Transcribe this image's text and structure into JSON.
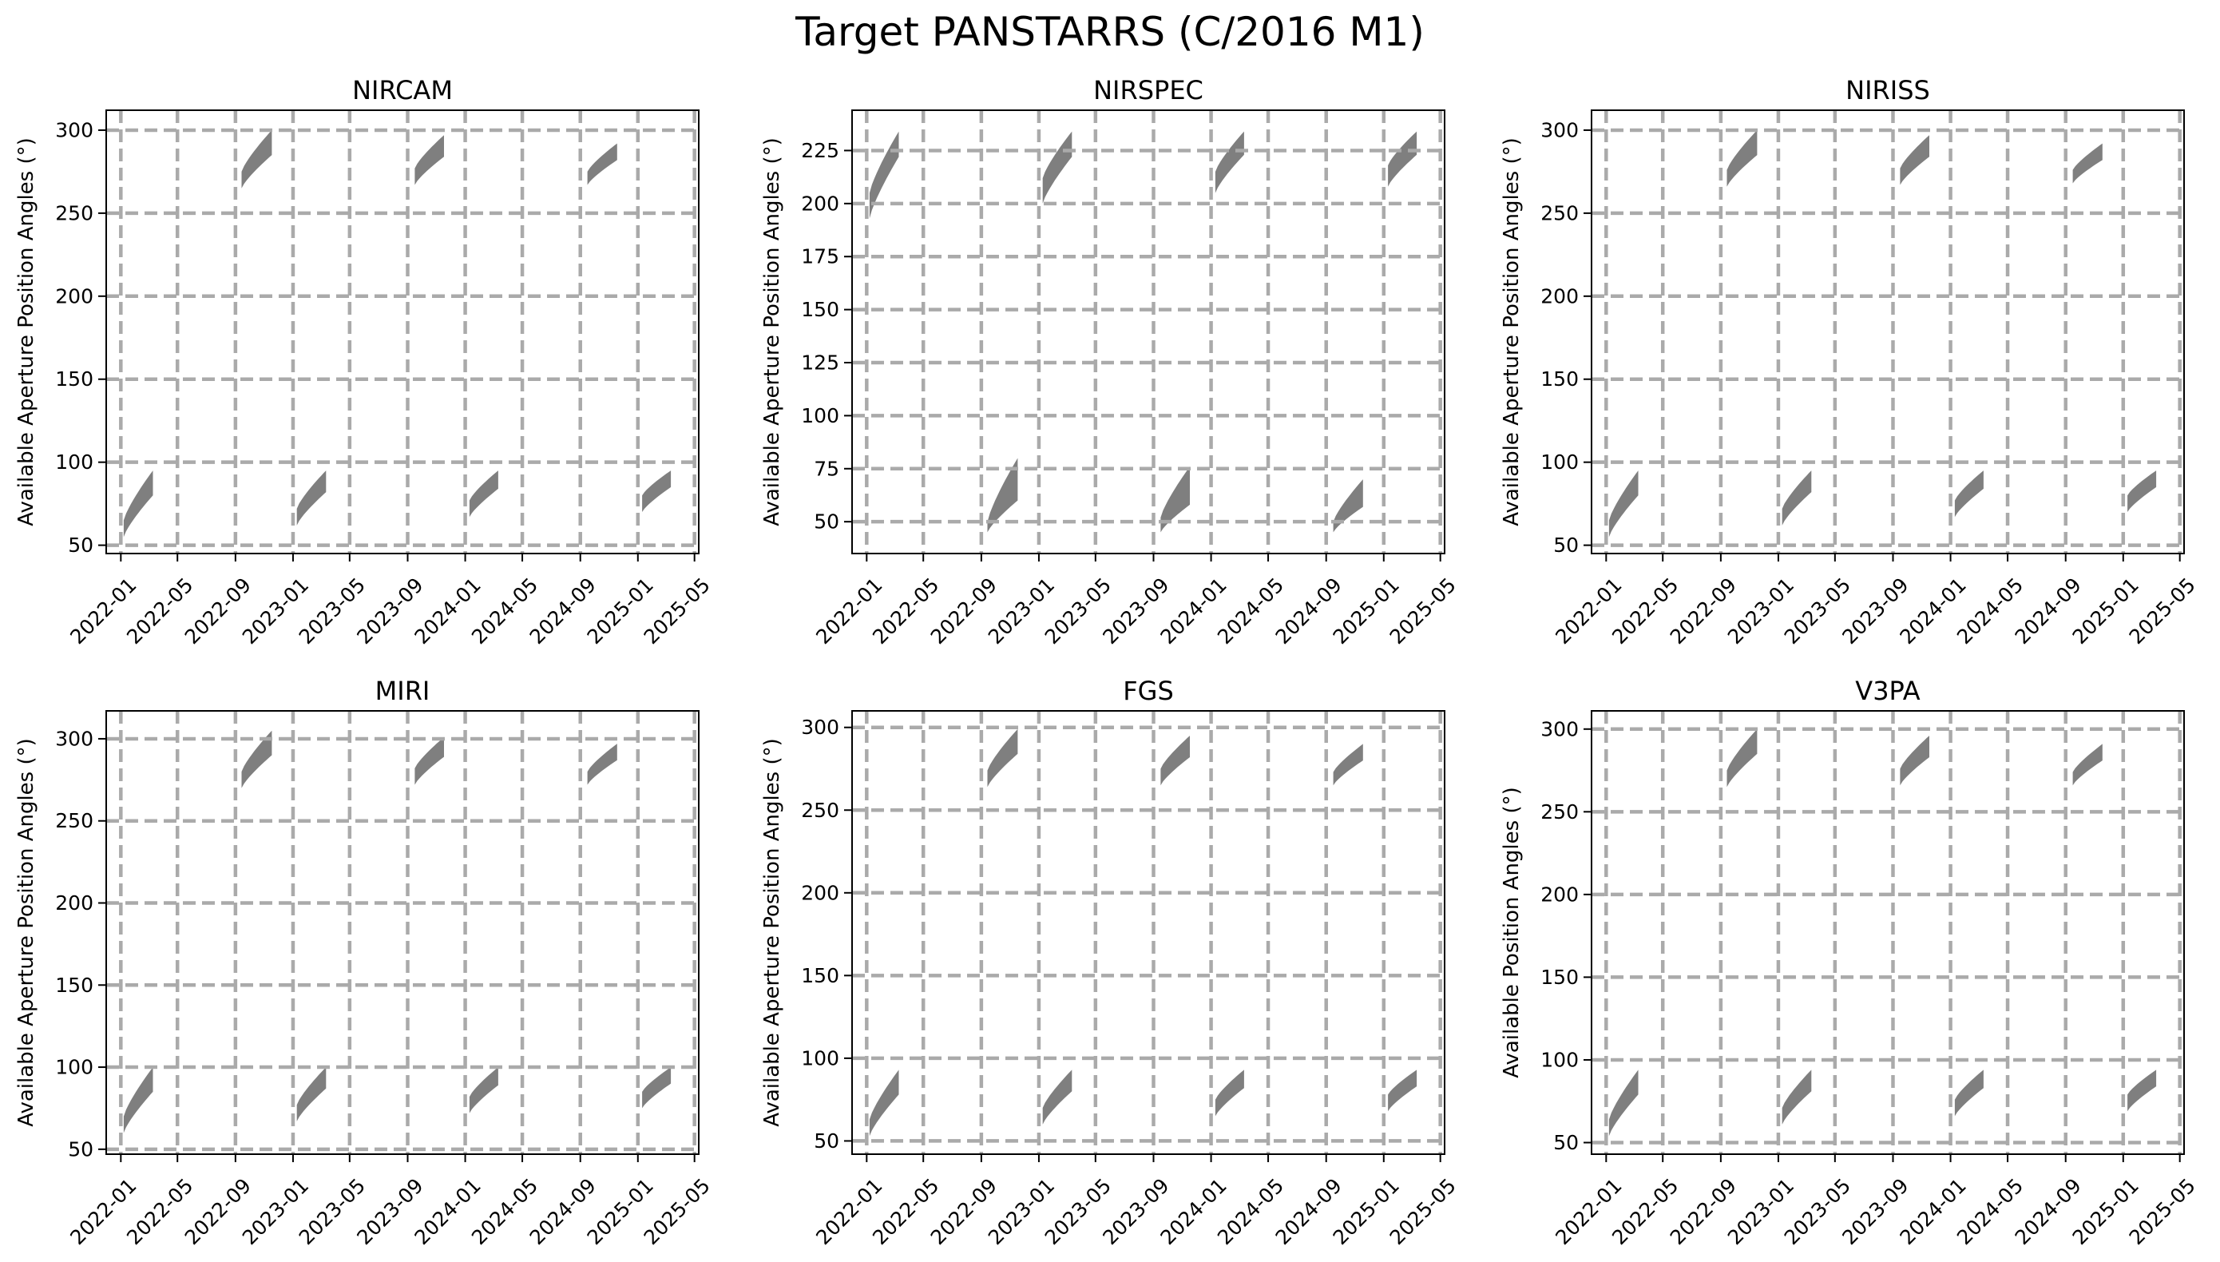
{
  "title": "Target PANSTARRS (C/2016 M1)",
  "colors": {
    "fill": "#7f7f7f",
    "grid": "#aaaaaa",
    "axis": "#000000"
  },
  "chart_data": [
    {
      "type": "area",
      "title": "NIRCAM",
      "ylabel": "Available Aperture Position Angles ($^\\circ$)",
      "ylabel_display": "Available Aperture Position Angles (°)",
      "xticks": [
        "2022-01",
        "2022-05",
        "2022-09",
        "2023-01",
        "2023-05",
        "2023-09",
        "2024-01",
        "2024-05",
        "2024-09",
        "2025-01",
        "2025-05"
      ],
      "yticks": [
        50,
        100,
        150,
        200,
        250,
        300
      ],
      "xlim": [
        "2021-12-01",
        "2025-05-10"
      ],
      "ylim": [
        45,
        312
      ],
      "grid": true,
      "windows": [
        {
          "start": "2022-01-07",
          "end": "2022-03-10",
          "lower": [
            55,
            80
          ],
          "upper": [
            65,
            95
          ]
        },
        {
          "start": "2022-09-14",
          "end": "2022-11-17",
          "lower": [
            265,
            285
          ],
          "upper": [
            275,
            300
          ]
        },
        {
          "start": "2023-01-09",
          "end": "2023-03-12",
          "lower": [
            62,
            82
          ],
          "upper": [
            72,
            95
          ]
        },
        {
          "start": "2023-09-16",
          "end": "2023-11-17",
          "lower": [
            267,
            284
          ],
          "upper": [
            277,
            297
          ]
        },
        {
          "start": "2024-01-10",
          "end": "2024-03-11",
          "lower": [
            67,
            84
          ],
          "upper": [
            77,
            95
          ]
        },
        {
          "start": "2024-09-16",
          "end": "2024-11-18",
          "lower": [
            267,
            282
          ],
          "upper": [
            275,
            292
          ]
        },
        {
          "start": "2025-01-10",
          "end": "2025-03-12",
          "lower": [
            70,
            85
          ],
          "upper": [
            80,
            95
          ]
        }
      ]
    },
    {
      "type": "area",
      "title": "NIRSPEC",
      "ylabel": "Available Aperture Position Angles ($^\\circ$)",
      "ylabel_display": "Available Aperture Position Angles (°)",
      "xticks": [
        "2022-01",
        "2022-05",
        "2022-09",
        "2023-01",
        "2023-05",
        "2023-09",
        "2024-01",
        "2024-05",
        "2024-09",
        "2025-01",
        "2025-05"
      ],
      "yticks": [
        50,
        75,
        100,
        125,
        150,
        175,
        200,
        225
      ],
      "xlim": [
        "2021-12-01",
        "2025-05-10"
      ],
      "ylim": [
        35,
        244
      ],
      "grid": true,
      "windows": [
        {
          "start": "2022-01-07",
          "end": "2022-03-10",
          "lower": [
            193,
            222
          ],
          "upper": [
            205,
            234
          ]
        },
        {
          "start": "2022-09-14",
          "end": "2022-11-17",
          "lower": [
            45,
            60
          ],
          "upper": [
            50,
            80
          ]
        },
        {
          "start": "2023-01-09",
          "end": "2023-03-12",
          "lower": [
            200,
            222
          ],
          "upper": [
            212,
            234
          ]
        },
        {
          "start": "2023-09-16",
          "end": "2023-11-17",
          "lower": [
            45,
            58
          ],
          "upper": [
            52,
            76
          ]
        },
        {
          "start": "2024-01-10",
          "end": "2024-03-11",
          "lower": [
            205,
            223
          ],
          "upper": [
            215,
            234
          ]
        },
        {
          "start": "2024-09-16",
          "end": "2024-11-18",
          "lower": [
            45,
            57
          ],
          "upper": [
            50,
            70
          ]
        },
        {
          "start": "2025-01-10",
          "end": "2025-03-12",
          "lower": [
            208,
            223
          ],
          "upper": [
            218,
            234
          ]
        }
      ]
    },
    {
      "type": "area",
      "title": "NIRISS",
      "ylabel": "Available Aperture Position Angles ($^\\circ$)",
      "ylabel_display": "Available Aperture Position Angles (°)",
      "xticks": [
        "2022-01",
        "2022-05",
        "2022-09",
        "2023-01",
        "2023-05",
        "2023-09",
        "2024-01",
        "2024-05",
        "2024-09",
        "2025-01",
        "2025-05"
      ],
      "yticks": [
        50,
        100,
        150,
        200,
        250,
        300
      ],
      "xlim": [
        "2021-12-01",
        "2025-05-10"
      ],
      "ylim": [
        45,
        312
      ],
      "grid": true,
      "windows": [
        {
          "start": "2022-01-07",
          "end": "2022-03-10",
          "lower": [
            55,
            80
          ],
          "upper": [
            65,
            95
          ]
        },
        {
          "start": "2022-09-14",
          "end": "2022-11-17",
          "lower": [
            266,
            285
          ],
          "upper": [
            276,
            300
          ]
        },
        {
          "start": "2023-01-09",
          "end": "2023-03-12",
          "lower": [
            62,
            82
          ],
          "upper": [
            72,
            95
          ]
        },
        {
          "start": "2023-09-16",
          "end": "2023-11-17",
          "lower": [
            267,
            284
          ],
          "upper": [
            277,
            297
          ]
        },
        {
          "start": "2024-01-10",
          "end": "2024-03-11",
          "lower": [
            67,
            84
          ],
          "upper": [
            77,
            95
          ]
        },
        {
          "start": "2024-09-16",
          "end": "2024-11-18",
          "lower": [
            268,
            282
          ],
          "upper": [
            276,
            292
          ]
        },
        {
          "start": "2025-01-10",
          "end": "2025-03-12",
          "lower": [
            70,
            85
          ],
          "upper": [
            80,
            95
          ]
        }
      ]
    },
    {
      "type": "area",
      "title": "MIRI",
      "ylabel": "Available Aperture Position Angles ($^\\circ$)",
      "ylabel_display": "Available Aperture Position Angles (°)",
      "xticks": [
        "2022-01",
        "2022-05",
        "2022-09",
        "2023-01",
        "2023-05",
        "2023-09",
        "2024-01",
        "2024-05",
        "2024-09",
        "2025-01",
        "2025-05"
      ],
      "yticks": [
        50,
        100,
        150,
        200,
        250,
        300
      ],
      "xlim": [
        "2021-12-01",
        "2025-05-10"
      ],
      "ylim": [
        47,
        317
      ],
      "grid": true,
      "windows": [
        {
          "start": "2022-01-07",
          "end": "2022-03-10",
          "lower": [
            60,
            85
          ],
          "upper": [
            70,
            100
          ]
        },
        {
          "start": "2022-09-14",
          "end": "2022-11-17",
          "lower": [
            270,
            290
          ],
          "upper": [
            280,
            305
          ]
        },
        {
          "start": "2023-01-09",
          "end": "2023-03-12",
          "lower": [
            67,
            87
          ],
          "upper": [
            77,
            100
          ]
        },
        {
          "start": "2023-09-16",
          "end": "2023-11-17",
          "lower": [
            272,
            289
          ],
          "upper": [
            282,
            301
          ]
        },
        {
          "start": "2024-01-10",
          "end": "2024-03-11",
          "lower": [
            72,
            89
          ],
          "upper": [
            82,
            100
          ]
        },
        {
          "start": "2024-09-16",
          "end": "2024-11-18",
          "lower": [
            272,
            287
          ],
          "upper": [
            280,
            297
          ]
        },
        {
          "start": "2025-01-10",
          "end": "2025-03-12",
          "lower": [
            75,
            90
          ],
          "upper": [
            85,
            100
          ]
        }
      ]
    },
    {
      "type": "area",
      "title": "FGS",
      "ylabel": "Available Aperture Position Angles ($^\\circ$)",
      "ylabel_display": "Available Aperture Position Angles (°)",
      "xticks": [
        "2022-01",
        "2022-05",
        "2022-09",
        "2023-01",
        "2023-05",
        "2023-09",
        "2024-01",
        "2024-05",
        "2024-09",
        "2025-01",
        "2025-05"
      ],
      "yticks": [
        50,
        100,
        150,
        200,
        250,
        300
      ],
      "xlim": [
        "2021-12-01",
        "2025-05-10"
      ],
      "ylim": [
        42,
        310
      ],
      "grid": true,
      "windows": [
        {
          "start": "2022-01-07",
          "end": "2022-03-10",
          "lower": [
            53,
            78
          ],
          "upper": [
            63,
            93
          ]
        },
        {
          "start": "2022-09-14",
          "end": "2022-11-17",
          "lower": [
            264,
            284
          ],
          "upper": [
            274,
            299
          ]
        },
        {
          "start": "2023-01-09",
          "end": "2023-03-12",
          "lower": [
            60,
            80
          ],
          "upper": [
            70,
            93
          ]
        },
        {
          "start": "2023-09-16",
          "end": "2023-11-17",
          "lower": [
            265,
            282
          ],
          "upper": [
            275,
            295
          ]
        },
        {
          "start": "2024-01-10",
          "end": "2024-03-11",
          "lower": [
            65,
            82
          ],
          "upper": [
            75,
            93
          ]
        },
        {
          "start": "2024-09-16",
          "end": "2024-11-18",
          "lower": [
            265,
            280
          ],
          "upper": [
            273,
            290
          ]
        },
        {
          "start": "2025-01-10",
          "end": "2025-03-12",
          "lower": [
            68,
            83
          ],
          "upper": [
            78,
            93
          ]
        }
      ]
    },
    {
      "type": "area",
      "title": "V3PA",
      "ylabel": "Available Position Angles ($^\\circ$)",
      "ylabel_display": "Available Position Angles (°)",
      "xticks": [
        "2022-01",
        "2022-05",
        "2022-09",
        "2023-01",
        "2023-05",
        "2023-09",
        "2024-01",
        "2024-05",
        "2024-09",
        "2025-01",
        "2025-05"
      ],
      "yticks": [
        50,
        100,
        150,
        200,
        250,
        300
      ],
      "xlim": [
        "2021-12-01",
        "2025-05-10"
      ],
      "ylim": [
        43,
        311
      ],
      "grid": true,
      "windows": [
        {
          "start": "2022-01-07",
          "end": "2022-03-10",
          "lower": [
            54,
            79
          ],
          "upper": [
            64,
            94
          ]
        },
        {
          "start": "2022-09-14",
          "end": "2022-11-17",
          "lower": [
            265,
            285
          ],
          "upper": [
            275,
            300
          ]
        },
        {
          "start": "2023-01-09",
          "end": "2023-03-12",
          "lower": [
            61,
            81
          ],
          "upper": [
            71,
            94
          ]
        },
        {
          "start": "2023-09-16",
          "end": "2023-11-17",
          "lower": [
            266,
            283
          ],
          "upper": [
            276,
            296
          ]
        },
        {
          "start": "2024-01-10",
          "end": "2024-03-11",
          "lower": [
            66,
            83
          ],
          "upper": [
            76,
            94
          ]
        },
        {
          "start": "2024-09-16",
          "end": "2024-11-18",
          "lower": [
            266,
            281
          ],
          "upper": [
            274,
            291
          ]
        },
        {
          "start": "2025-01-10",
          "end": "2025-03-12",
          "lower": [
            69,
            84
          ],
          "upper": [
            79,
            94
          ]
        }
      ]
    }
  ]
}
